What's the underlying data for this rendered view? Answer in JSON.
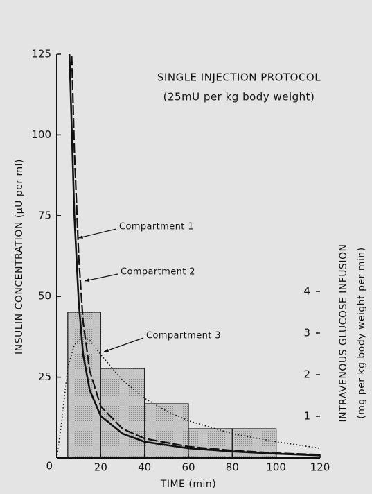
{
  "chart_data": {
    "type": "line",
    "title": "SINGLE INJECTION PROTOCOL",
    "subtitle": "(25mU per kg body weight)",
    "x_label": "TIME (min)",
    "y_label": "INSULIN CONCENTRATION (µU per ml)",
    "y2_label": "INTRAVENOUS GLUCOSE INFUSION",
    "y2_sublabel": "(mg per kg body weight per min)",
    "xlim": [
      0,
      120
    ],
    "xticks": [
      20,
      40,
      60,
      80,
      100,
      120
    ],
    "ylim": [
      0,
      125
    ],
    "yticks": [
      0,
      25,
      50,
      75,
      100,
      125
    ],
    "y2lim": [
      0,
      9.7
    ],
    "y2ticks": [
      1,
      2,
      3,
      4
    ],
    "series": [
      {
        "name": "Compartment 1",
        "color": "#111111",
        "style": "solid",
        "x": [
          5,
          6,
          8,
          10,
          12,
          15,
          20,
          30,
          40,
          60,
          80,
          100,
          120
        ],
        "values": [
          140,
          120,
          75,
          48,
          32,
          21,
          13,
          7.5,
          5,
          3,
          2,
          1.3,
          0.8
        ]
      },
      {
        "name": "Compartment 2",
        "color": "#111111",
        "style": "dashed",
        "x": [
          6,
          7,
          8,
          10,
          12,
          15,
          20,
          30,
          40,
          60,
          80,
          100,
          120
        ],
        "values": [
          140,
          120,
          95,
          62,
          42,
          27,
          16,
          9,
          6,
          3.5,
          2.3,
          1.5,
          1
        ]
      },
      {
        "name": "Compartment 3",
        "color": "#111111",
        "style": "dotted",
        "x": [
          0,
          2,
          5,
          8,
          12,
          15,
          20,
          30,
          40,
          50,
          60,
          80,
          100,
          120
        ],
        "values": [
          0,
          10,
          28,
          35,
          37.5,
          36.5,
          32,
          24,
          18.5,
          14.5,
          11.5,
          7.5,
          5,
          3
        ]
      }
    ],
    "histogram": {
      "axis": "y2",
      "color": "#b9b9b9",
      "bins": [
        5,
        20,
        40,
        60,
        80,
        100
      ],
      "values": [
        3.5,
        2.15,
        1.3,
        0.7,
        0.7
      ]
    }
  }
}
